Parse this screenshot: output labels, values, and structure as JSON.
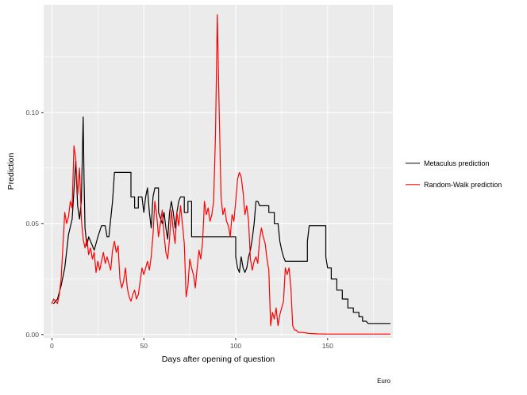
{
  "caption": "Euro",
  "chart_data": {
    "type": "line",
    "title": "",
    "xlabel": "Days after opening of question",
    "ylabel": "Prediction",
    "xlim": [
      -4.5,
      185.5
    ],
    "ylim": [
      -0.0015,
      0.1485
    ],
    "x_ticks": [
      0,
      50,
      100,
      150
    ],
    "x_tick_labels": [
      "0",
      "50",
      "100",
      "150"
    ],
    "x_minor_ticks": [
      25,
      75,
      125,
      175
    ],
    "y_ticks": [
      0,
      0.05,
      0.1
    ],
    "y_tick_labels": [
      "0.00",
      "0.05",
      "0.10"
    ],
    "y_minor_ticks": [
      0.025,
      0.075,
      0.125
    ],
    "grid": true,
    "legend_position": "right",
    "panel_background": "#EBEBEB",
    "grid_color": "#FFFFFF",
    "tick_color": "#333333",
    "tick_label_color": "#4D4D4D",
    "series": [
      {
        "name": "Metaculus prediction",
        "color": "#000000",
        "points": [
          [
            1,
            0.014
          ],
          [
            3,
            0.016
          ],
          [
            5,
            0.022
          ],
          [
            7,
            0.03
          ],
          [
            9,
            0.045
          ],
          [
            11,
            0.052
          ],
          [
            12,
            0.065
          ],
          [
            13,
            0.078
          ],
          [
            14,
            0.058
          ],
          [
            15,
            0.052
          ],
          [
            16,
            0.06
          ],
          [
            17,
            0.098
          ],
          [
            17.5,
            0.07
          ],
          [
            18,
            0.048
          ],
          [
            19,
            0.04
          ],
          [
            20,
            0.044
          ],
          [
            21,
            0.042
          ],
          [
            23,
            0.038
          ],
          [
            25,
            0.044
          ],
          [
            27,
            0.049
          ],
          [
            29,
            0.049
          ],
          [
            30,
            0.044
          ],
          [
            31,
            0.044
          ],
          [
            32,
            0.052
          ],
          [
            33,
            0.06
          ],
          [
            34,
            0.073
          ],
          [
            43,
            0.073
          ],
          [
            43,
            0.062
          ],
          [
            45,
            0.062
          ],
          [
            45,
            0.057
          ],
          [
            47,
            0.057
          ],
          [
            47,
            0.062
          ],
          [
            49,
            0.062
          ],
          [
            50,
            0.055
          ],
          [
            51,
            0.062
          ],
          [
            52,
            0.066
          ],
          [
            53,
            0.055
          ],
          [
            54,
            0.048
          ],
          [
            55,
            0.062
          ],
          [
            56,
            0.066
          ],
          [
            58,
            0.066
          ],
          [
            58,
            0.055
          ],
          [
            60,
            0.05
          ],
          [
            61,
            0.055
          ],
          [
            62,
            0.048
          ],
          [
            63,
            0.043
          ],
          [
            64,
            0.055
          ],
          [
            65,
            0.06
          ],
          [
            66,
            0.055
          ],
          [
            67,
            0.048
          ],
          [
            68,
            0.055
          ],
          [
            69,
            0.06
          ],
          [
            70,
            0.062
          ],
          [
            72,
            0.062
          ],
          [
            72,
            0.055
          ],
          [
            74,
            0.055
          ],
          [
            74,
            0.06
          ],
          [
            76,
            0.06
          ],
          [
            76,
            0.044
          ],
          [
            100,
            0.044
          ],
          [
            100,
            0.035
          ],
          [
            101,
            0.03
          ],
          [
            102,
            0.028
          ],
          [
            103,
            0.035
          ],
          [
            104,
            0.03
          ],
          [
            105,
            0.028
          ],
          [
            106,
            0.03
          ],
          [
            107,
            0.035
          ],
          [
            108,
            0.038
          ],
          [
            109,
            0.043
          ],
          [
            110,
            0.05
          ],
          [
            111,
            0.06
          ],
          [
            112,
            0.06
          ],
          [
            113,
            0.058
          ],
          [
            118,
            0.058
          ],
          [
            118,
            0.055
          ],
          [
            121,
            0.055
          ],
          [
            121,
            0.05
          ],
          [
            123,
            0.05
          ],
          [
            124,
            0.042
          ],
          [
            125,
            0.038
          ],
          [
            126,
            0.035
          ],
          [
            127,
            0.033
          ],
          [
            139,
            0.033
          ],
          [
            139,
            0.042
          ],
          [
            140,
            0.049
          ],
          [
            149,
            0.049
          ],
          [
            149,
            0.035
          ],
          [
            150,
            0.03
          ],
          [
            152,
            0.03
          ],
          [
            152,
            0.025
          ],
          [
            155,
            0.025
          ],
          [
            155,
            0.02
          ],
          [
            158,
            0.02
          ],
          [
            158,
            0.016
          ],
          [
            161,
            0.016
          ],
          [
            161,
            0.012
          ],
          [
            164,
            0.012
          ],
          [
            164,
            0.01
          ],
          [
            167,
            0.01
          ],
          [
            167,
            0.008
          ],
          [
            169,
            0.008
          ],
          [
            169,
            0.006
          ],
          [
            171,
            0.006
          ],
          [
            172,
            0.005
          ],
          [
            184,
            0.005
          ]
        ]
      },
      {
        "name": "Random-Walk prediction",
        "color": "#FF0000",
        "points": [
          [
            0,
            0.014
          ],
          [
            1,
            0.016
          ],
          [
            2,
            0.015
          ],
          [
            3,
            0.014
          ],
          [
            4,
            0.018
          ],
          [
            5,
            0.025
          ],
          [
            6,
            0.04
          ],
          [
            7,
            0.055
          ],
          [
            8,
            0.05
          ],
          [
            9,
            0.053
          ],
          [
            10,
            0.06
          ],
          [
            11,
            0.057
          ],
          [
            12,
            0.085
          ],
          [
            13,
            0.079
          ],
          [
            14,
            0.063
          ],
          [
            15,
            0.075
          ],
          [
            16,
            0.052
          ],
          [
            17,
            0.043
          ],
          [
            18,
            0.039
          ],
          [
            19,
            0.043
          ],
          [
            20,
            0.036
          ],
          [
            21,
            0.039
          ],
          [
            22,
            0.034
          ],
          [
            23,
            0.037
          ],
          [
            24,
            0.028
          ],
          [
            25,
            0.033
          ],
          [
            26,
            0.029
          ],
          [
            27,
            0.033
          ],
          [
            28,
            0.037
          ],
          [
            29,
            0.032
          ],
          [
            30,
            0.035
          ],
          [
            31,
            0.032
          ],
          [
            32,
            0.029
          ],
          [
            33,
            0.038
          ],
          [
            34,
            0.042
          ],
          [
            35,
            0.037
          ],
          [
            36,
            0.04
          ],
          [
            37,
            0.025
          ],
          [
            38,
            0.021
          ],
          [
            39,
            0.024
          ],
          [
            40,
            0.03
          ],
          [
            41,
            0.021
          ],
          [
            42,
            0.017
          ],
          [
            43,
            0.015
          ],
          [
            44,
            0.018
          ],
          [
            45,
            0.02
          ],
          [
            46,
            0.016
          ],
          [
            47,
            0.018
          ],
          [
            48,
            0.024
          ],
          [
            49,
            0.03
          ],
          [
            50,
            0.027
          ],
          [
            51,
            0.03
          ],
          [
            52,
            0.033
          ],
          [
            53,
            0.029
          ],
          [
            54,
            0.035
          ],
          [
            55,
            0.045
          ],
          [
            56,
            0.06
          ],
          [
            57,
            0.054
          ],
          [
            58,
            0.044
          ],
          [
            59,
            0.05
          ],
          [
            60,
            0.056
          ],
          [
            61,
            0.045
          ],
          [
            62,
            0.037
          ],
          [
            63,
            0.034
          ],
          [
            64,
            0.043
          ],
          [
            65,
            0.056
          ],
          [
            66,
            0.047
          ],
          [
            67,
            0.041
          ],
          [
            68,
            0.055
          ],
          [
            69,
            0.049
          ],
          [
            70,
            0.058
          ],
          [
            71,
            0.05
          ],
          [
            72,
            0.041
          ],
          [
            73,
            0.017
          ],
          [
            74,
            0.022
          ],
          [
            75,
            0.034
          ],
          [
            76,
            0.03
          ],
          [
            77,
            0.027
          ],
          [
            78,
            0.021
          ],
          [
            79,
            0.03
          ],
          [
            80,
            0.038
          ],
          [
            81,
            0.034
          ],
          [
            82,
            0.042
          ],
          [
            83,
            0.06
          ],
          [
            84,
            0.054
          ],
          [
            85,
            0.057
          ],
          [
            86,
            0.051
          ],
          [
            87,
            0.054
          ],
          [
            88,
            0.06
          ],
          [
            89,
            0.09
          ],
          [
            90,
            0.144
          ],
          [
            91,
            0.1
          ],
          [
            92,
            0.062
          ],
          [
            93,
            0.054
          ],
          [
            94,
            0.057
          ],
          [
            95,
            0.051
          ],
          [
            96,
            0.049
          ],
          [
            97,
            0.044
          ],
          [
            98,
            0.054
          ],
          [
            99,
            0.051
          ],
          [
            100,
            0.06
          ],
          [
            101,
            0.07
          ],
          [
            102,
            0.073
          ],
          [
            103,
            0.071
          ],
          [
            104,
            0.064
          ],
          [
            105,
            0.054
          ],
          [
            106,
            0.058
          ],
          [
            107,
            0.051
          ],
          [
            108,
            0.034
          ],
          [
            109,
            0.029
          ],
          [
            110,
            0.033
          ],
          [
            111,
            0.035
          ],
          [
            112,
            0.032
          ],
          [
            113,
            0.043
          ],
          [
            114,
            0.048
          ],
          [
            115,
            0.044
          ],
          [
            116,
            0.041
          ],
          [
            117,
            0.034
          ],
          [
            118,
            0.029
          ],
          [
            119,
            0.004
          ],
          [
            120,
            0.01
          ],
          [
            121,
            0.007
          ],
          [
            122,
            0.012
          ],
          [
            123,
            0.004
          ],
          [
            124,
            0.009
          ],
          [
            125,
            0.012
          ],
          [
            126,
            0.015
          ],
          [
            127,
            0.03
          ],
          [
            128,
            0.027
          ],
          [
            129,
            0.03
          ],
          [
            130,
            0.021
          ],
          [
            131,
            0.004
          ],
          [
            132,
            0.002
          ],
          [
            133,
            0.002
          ],
          [
            134,
            0.001
          ],
          [
            136,
            0.001
          ],
          [
            140,
            0.0005
          ],
          [
            145,
            0.0003
          ],
          [
            150,
            0.0002
          ],
          [
            160,
            0.0002
          ],
          [
            170,
            0.0002
          ],
          [
            184,
            0.0002
          ]
        ]
      }
    ]
  }
}
